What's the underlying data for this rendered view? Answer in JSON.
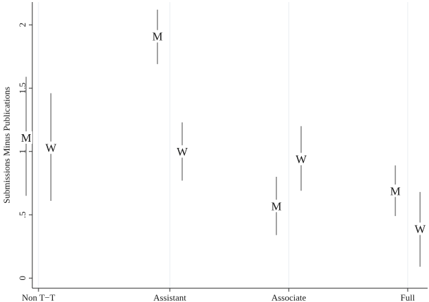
{
  "chart_data": {
    "type": "scatter",
    "ylabel": "Submissions Minus Publications",
    "xlabel": "",
    "categories": [
      "Non T−T",
      "Assistant",
      "Associate",
      "Full"
    ],
    "y_ticks": [
      {
        "value": 0,
        "label": "0"
      },
      {
        "value": 0.5,
        "label": ".5"
      },
      {
        "value": 1,
        "label": "1"
      },
      {
        "value": 1.5,
        "label": "1.5"
      },
      {
        "value": 2,
        "label": "2"
      }
    ],
    "ylim": [
      -0.08,
      2.18
    ],
    "grid": "vertical",
    "series": [
      {
        "name": "M",
        "marker_label": "M",
        "points": [
          {
            "category": "Non T−T",
            "estimate": 1.11,
            "ci_low": 0.65,
            "ci_high": 1.59
          },
          {
            "category": "Assistant",
            "estimate": 1.91,
            "ci_low": 1.69,
            "ci_high": 2.12
          },
          {
            "category": "Associate",
            "estimate": 0.57,
            "ci_low": 0.34,
            "ci_high": 0.8
          },
          {
            "category": "Full",
            "estimate": 0.69,
            "ci_low": 0.49,
            "ci_high": 0.89
          }
        ]
      },
      {
        "name": "W",
        "marker_label": "W",
        "points": [
          {
            "category": "Non T−T",
            "estimate": 1.03,
            "ci_low": 0.61,
            "ci_high": 1.46
          },
          {
            "category": "Assistant",
            "estimate": 1.0,
            "ci_low": 0.77,
            "ci_high": 1.23
          },
          {
            "category": "Associate",
            "estimate": 0.94,
            "ci_low": 0.69,
            "ci_high": 1.2
          },
          {
            "category": "Full",
            "estimate": 0.39,
            "ci_low": 0.09,
            "ci_high": 0.68
          }
        ]
      }
    ],
    "colors": {
      "ci_line": "#8a8a8a",
      "grid": "#e8eef2",
      "axis": "#2a2a2a",
      "text": "#1a1a1a"
    }
  }
}
